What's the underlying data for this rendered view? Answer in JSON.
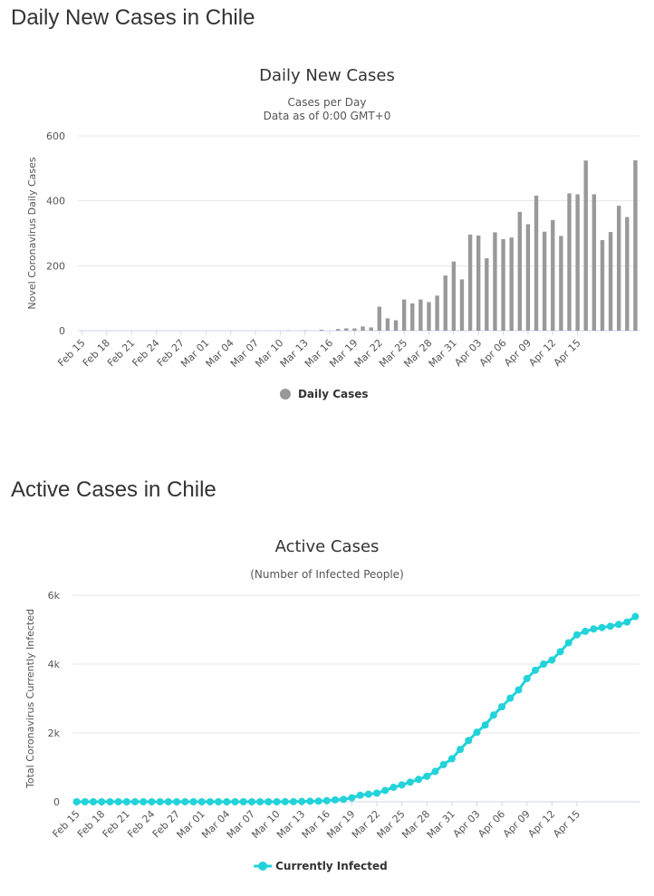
{
  "section1": {
    "heading": "Daily New Cases in Chile"
  },
  "section2": {
    "heading": "Active Cases in Chile"
  },
  "chart_data": [
    {
      "type": "bar",
      "title": "Daily New Cases",
      "subtitle": [
        "Cases per Day",
        "Data as of 0:00 GMT+0"
      ],
      "ylabel": "Novel Coronavirus Daily Cases",
      "xlabel": "",
      "ylim": [
        0,
        600
      ],
      "yticks": [
        "0",
        "200",
        "400",
        "600"
      ],
      "ytick_values": [
        0,
        200,
        400,
        600
      ],
      "tick_labels": [
        "Feb 15",
        "Feb 18",
        "Feb 21",
        "Feb 24",
        "Feb 27",
        "Mar 01",
        "Mar 04",
        "Mar 07",
        "Mar 10",
        "Mar 13",
        "Mar 16",
        "Mar 19",
        "Mar 22",
        "Mar 25",
        "Mar 28",
        "Mar 31",
        "Apr 03",
        "Apr 06",
        "Apr 09",
        "Apr 12",
        "Apr 15"
      ],
      "start_label": "Feb 15",
      "series": [
        {
          "name": "Daily Cases",
          "color": "#999999",
          "values": [
            0,
            0,
            0,
            0,
            0,
            0,
            0,
            0,
            0,
            0,
            0,
            0,
            0,
            0,
            0,
            0,
            0,
            0,
            0,
            0,
            0,
            0,
            0,
            0,
            0,
            1,
            0,
            1,
            0,
            3,
            0,
            5,
            7,
            7,
            13,
            10,
            74,
            38,
            32,
            96,
            84,
            96,
            88,
            108,
            170,
            213,
            158,
            296,
            293,
            223,
            303,
            282,
            287,
            366,
            328,
            416,
            305,
            341,
            292,
            423,
            420,
            524,
            420,
            279,
            304,
            385,
            350,
            525
          ]
        }
      ],
      "legend_position": "bottom-center",
      "grid": true
    },
    {
      "type": "line",
      "title": "Active Cases",
      "subtitle": [
        "(Number of Infected People)"
      ],
      "ylabel": "Total Coronavirus Currently Infected",
      "xlabel": "",
      "ylim": [
        0,
        6000
      ],
      "yticks": [
        "0",
        "2k",
        "4k",
        "6k"
      ],
      "ytick_values": [
        0,
        2000,
        4000,
        6000
      ],
      "tick_labels": [
        "Feb 15",
        "Feb 18",
        "Feb 21",
        "Feb 24",
        "Feb 27",
        "Mar 01",
        "Mar 04",
        "Mar 07",
        "Mar 10",
        "Mar 13",
        "Mar 16",
        "Mar 19",
        "Mar 22",
        "Mar 25",
        "Mar 28",
        "Mar 31",
        "Apr 03",
        "Apr 06",
        "Apr 09",
        "Apr 12",
        "Apr 15"
      ],
      "start_label": "Feb 15",
      "series": [
        {
          "name": "Currently Infected",
          "color": "#22d3d9",
          "values": [
            0,
            0,
            0,
            0,
            0,
            0,
            0,
            0,
            0,
            0,
            0,
            0,
            0,
            0,
            0,
            0,
            0,
            0,
            0,
            0,
            0,
            0,
            0,
            0,
            0,
            2,
            4,
            10,
            15,
            20,
            32,
            55,
            70,
            115,
            190,
            220,
            250,
            330,
            420,
            490,
            570,
            650,
            740,
            880,
            1080,
            1250,
            1520,
            1780,
            2020,
            2230,
            2520,
            2760,
            3010,
            3250,
            3580,
            3820,
            4000,
            4120,
            4360,
            4620,
            4850,
            4950,
            5020,
            5060,
            5100,
            5150,
            5220,
            5380
          ]
        }
      ],
      "legend_position": "bottom-center",
      "grid": true
    }
  ]
}
